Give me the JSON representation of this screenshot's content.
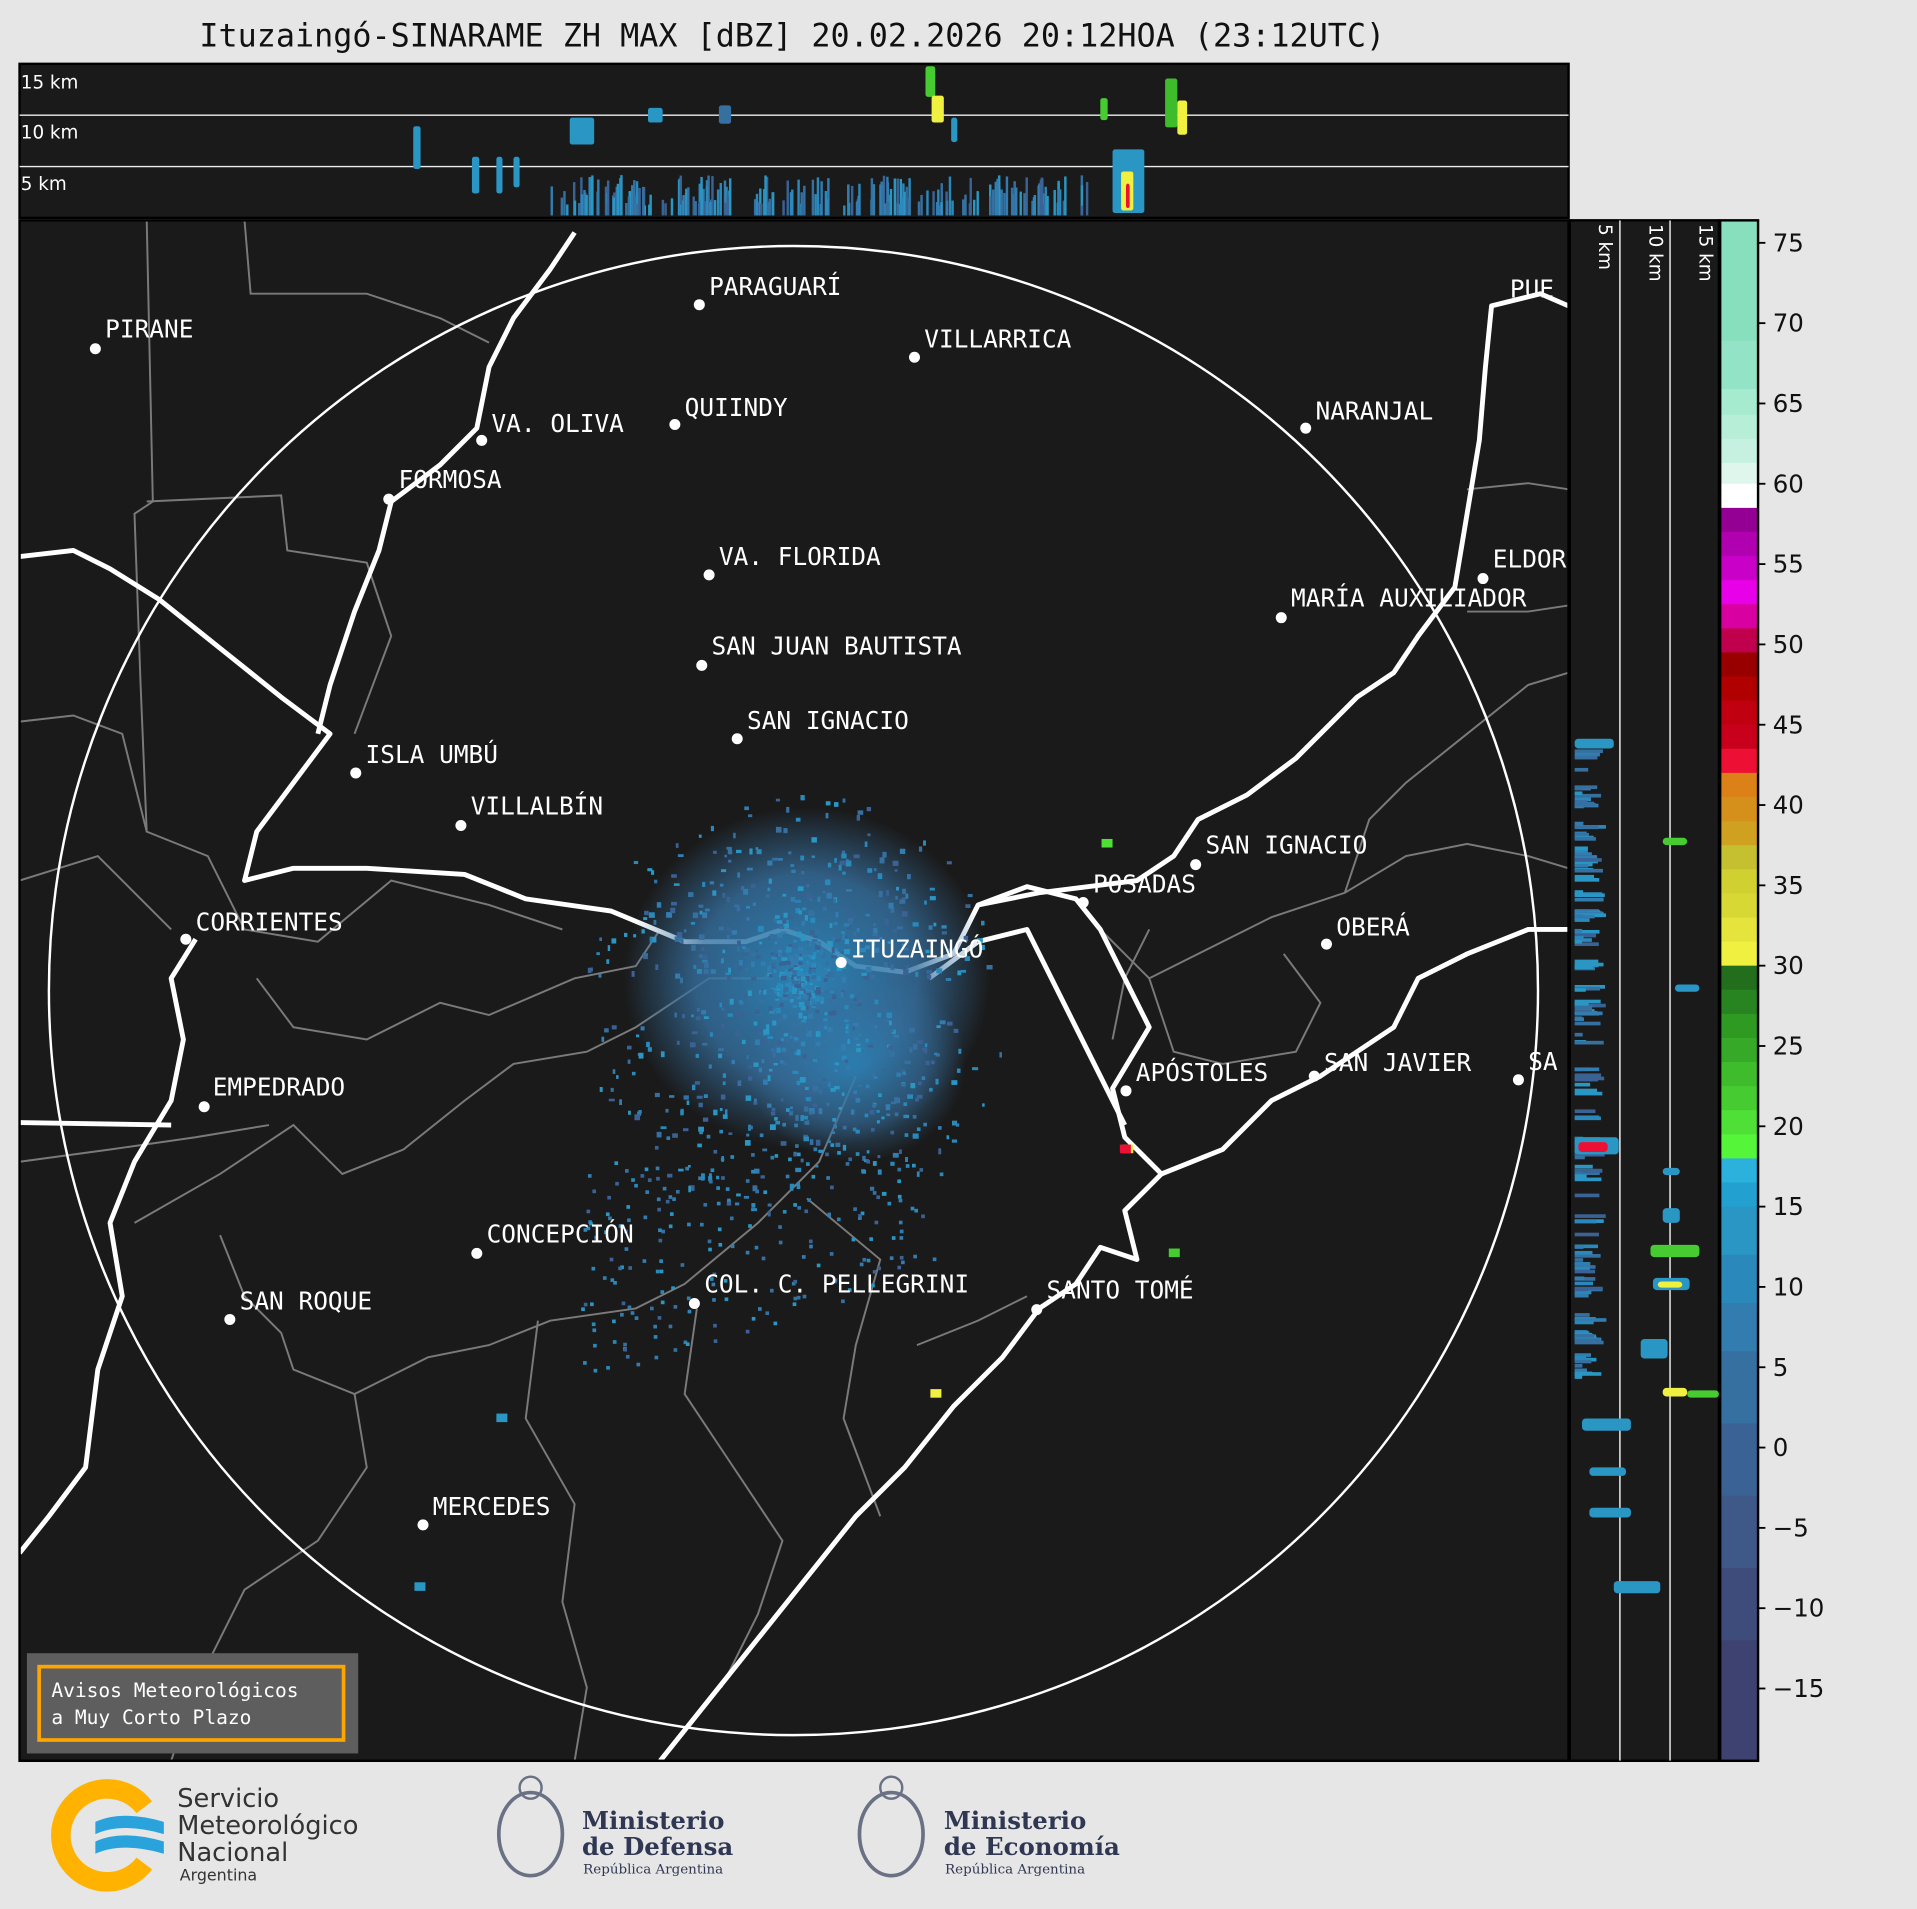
{
  "title": "Ituzaingó-SINARAME ZH MAX [dBZ] 20.02.2026 20:12HOA (23:12UTC)",
  "top_panel": {
    "levels": [
      "15 km",
      "10 km",
      "5 km"
    ]
  },
  "side_panel": {
    "levels": [
      "5 km",
      "10 km",
      "15 km"
    ]
  },
  "colorbar": {
    "range": [
      -19.5,
      76.4
    ],
    "ticks": [
      "75",
      "70",
      "65",
      "60",
      "55",
      "50",
      "45",
      "40",
      "35",
      "30",
      "25",
      "20",
      "15",
      "10",
      "5",
      "0",
      "−5",
      "−10",
      "−15"
    ],
    "tick_values": [
      75,
      70,
      65,
      60,
      55,
      50,
      45,
      40,
      35,
      30,
      25,
      20,
      15,
      10,
      5,
      0,
      -5,
      -10,
      -15
    ],
    "bands": [
      [
        68.9,
        76.4,
        "#88dfbe"
      ],
      [
        65.9,
        68.9,
        "#93e3c6"
      ],
      [
        64.3,
        65.9,
        "#a6eacf"
      ],
      [
        62.8,
        64.3,
        "#b7eed8"
      ],
      [
        61.3,
        62.8,
        "#c6f1e1"
      ],
      [
        60,
        61.3,
        "#dff6ec"
      ],
      [
        58.5,
        60,
        "#ffffff"
      ],
      [
        57,
        58.5,
        "#940094"
      ],
      [
        55.5,
        57,
        "#b000b0"
      ],
      [
        54,
        55.5,
        "#c800c8"
      ],
      [
        52.5,
        54,
        "#e800e8"
      ],
      [
        51,
        52.5,
        "#d800a0"
      ],
      [
        49.5,
        51,
        "#c0004c"
      ],
      [
        48,
        49.5,
        "#980000"
      ],
      [
        46.5,
        48,
        "#b00000"
      ],
      [
        45,
        46.5,
        "#c00010"
      ],
      [
        43.5,
        45,
        "#c8001c"
      ],
      [
        42,
        43.5,
        "#ee1034"
      ],
      [
        40.5,
        42,
        "#dc8018"
      ],
      [
        39,
        40.5,
        "#d4901a"
      ],
      [
        37.5,
        39,
        "#d0a020"
      ],
      [
        36,
        37.5,
        "#c4c030"
      ],
      [
        34.5,
        36,
        "#d0d030"
      ],
      [
        33,
        34.5,
        "#d8d835"
      ],
      [
        31.5,
        33,
        "#e4e43c"
      ],
      [
        30,
        31.5,
        "#f0f040"
      ],
      [
        28.5,
        30,
        "#226e1c"
      ],
      [
        27,
        28.5,
        "#288420"
      ],
      [
        25.5,
        27,
        "#2e9a22"
      ],
      [
        24,
        25.5,
        "#36aa28"
      ],
      [
        22.5,
        24,
        "#3ebc2c"
      ],
      [
        21,
        22.5,
        "#46cc30"
      ],
      [
        19.5,
        21,
        "#4ee036"
      ],
      [
        18,
        19.5,
        "#55f53a"
      ],
      [
        16.5,
        18,
        "#2cb0dc"
      ],
      [
        15,
        16.5,
        "#22a0d0"
      ],
      [
        12,
        15,
        "#2a96c4"
      ],
      [
        9,
        12,
        "#2a88ba"
      ],
      [
        6,
        9,
        "#327cb0"
      ],
      [
        1.5,
        6,
        "#3670a0"
      ],
      [
        -3,
        1.5,
        "#3a6294"
      ],
      [
        -7.5,
        -3,
        "#3e5888"
      ],
      [
        -12,
        -7.5,
        "#3e4c7c"
      ],
      [
        -19.5,
        -12,
        "#3e4270"
      ]
    ]
  },
  "cities": [
    {
      "name": "PIRANE",
      "dot": [
        78,
        285
      ],
      "label": [
        86,
        276
      ]
    },
    {
      "name": "PARAGUARÍ",
      "dot": [
        572,
        249
      ],
      "label": [
        580,
        241
      ]
    },
    {
      "name": "VILLARRICA",
      "dot": [
        748,
        292
      ],
      "label": [
        756,
        284
      ]
    },
    {
      "name": "VA. OLIVA",
      "dot": [
        394,
        360
      ],
      "label": [
        402,
        353
      ]
    },
    {
      "name": "QUIINDY",
      "dot": [
        552,
        347
      ],
      "label": [
        560,
        340
      ]
    },
    {
      "name": "NARANJAL",
      "dot": [
        1068,
        350
      ],
      "label": [
        1076,
        343
      ]
    },
    {
      "name": "FORMOSA",
      "dot": [
        318,
        408
      ],
      "label": [
        326,
        399
      ]
    },
    {
      "name": "VA. FLORIDA",
      "dot": [
        580,
        470
      ],
      "label": [
        588,
        462
      ]
    },
    {
      "name": "ELDOR",
      "dot": [
        1213,
        473
      ],
      "label": [
        1221,
        464
      ]
    },
    {
      "name": "MARÍA AUXILIADOR",
      "dot": [
        1048,
        505
      ],
      "label": [
        1056,
        496
      ]
    },
    {
      "name": "SAN JUAN BAUTISTA",
      "dot": [
        574,
        544
      ],
      "label": [
        582,
        535
      ]
    },
    {
      "name": "SAN IGNACIO",
      "dot": [
        603,
        604
      ],
      "label": [
        611,
        596
      ]
    },
    {
      "name": "ISLA UMBÚ",
      "dot": [
        291,
        632
      ],
      "label": [
        299,
        624
      ]
    },
    {
      "name": "VILLALBÍN",
      "dot": [
        377,
        675
      ],
      "label": [
        385,
        666
      ]
    },
    {
      "name": "SAN IGNACIO",
      "dot": [
        978,
        707
      ],
      "label": [
        986,
        698
      ]
    },
    {
      "name": "POSADAS",
      "dot": [
        886,
        738
      ],
      "label": [
        894,
        730
      ]
    },
    {
      "name": "CORRIENTES",
      "dot": [
        152,
        768
      ],
      "label": [
        160,
        761
      ]
    },
    {
      "name": "ITUZAINGÓ",
      "dot": [
        688,
        787
      ],
      "label": [
        696,
        783
      ]
    },
    {
      "name": "OBERÁ",
      "dot": [
        1085,
        772
      ],
      "label": [
        1093,
        765
      ]
    },
    {
      "name": "EMPEDRADO",
      "dot": [
        167,
        905
      ],
      "label": [
        174,
        896
      ]
    },
    {
      "name": "APÓSTOLES",
      "dot": [
        921,
        892
      ],
      "label": [
        929,
        884
      ]
    },
    {
      "name": "SAN JAVIER",
      "dot": [
        1075,
        880
      ],
      "label": [
        1083,
        876
      ]
    },
    {
      "name": "SA",
      "dot": [
        1242,
        883
      ],
      "label": [
        1250,
        875
      ]
    },
    {
      "name": "CONCEPCIÓN",
      "dot": [
        390,
        1025
      ],
      "label": [
        398,
        1016
      ]
    },
    {
      "name": "COL. C. PELLEGRINI",
      "dot": [
        568,
        1066
      ],
      "label": [
        576,
        1057
      ]
    },
    {
      "name": "SAN ROQUE",
      "dot": [
        188,
        1079
      ],
      "label": [
        196,
        1071
      ]
    },
    {
      "name": "SANTO TOMÉ",
      "dot": [
        848,
        1071
      ],
      "label": [
        856,
        1062
      ]
    },
    {
      "name": "MERCEDES",
      "dot": [
        346,
        1247
      ],
      "label": [
        354,
        1239
      ]
    },
    {
      "name": "PUE",
      "dot": [
        1300,
        300
      ],
      "label": [
        1235,
        243
      ]
    }
  ],
  "warning_box": {
    "line1": "Avisos Meteorológicos",
    "line2": "a Muy Corto Plazo",
    "border_color": "#ffa500"
  },
  "logos": {
    "smn": {
      "line1": "Servicio",
      "line2": "Meteorológico",
      "line3": "Nacional",
      "line4": "Argentina"
    },
    "defensa": {
      "line1": "Ministerio",
      "line2": "de Defensa",
      "line3": "República Argentina"
    },
    "economia": {
      "line1": "Ministerio",
      "line2": "de Economía",
      "line3": "República Argentina"
    }
  }
}
